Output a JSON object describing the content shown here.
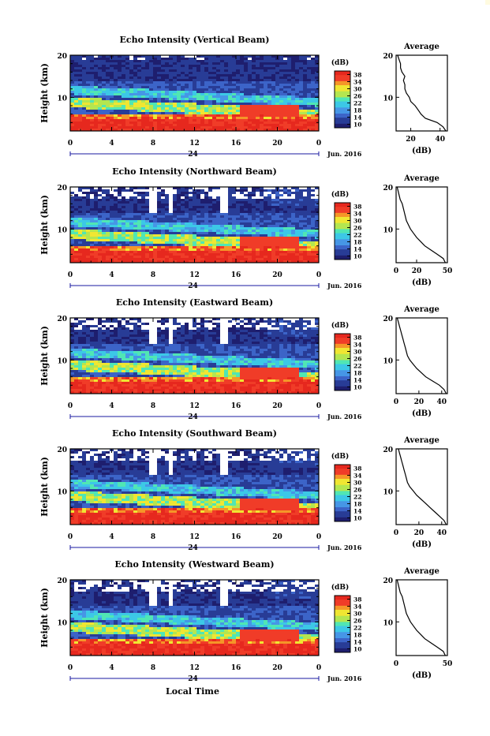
{
  "figure": {
    "x_label": "Local Time",
    "date_label": "Jun. 2016",
    "day_label": "24",
    "y_label": "Height (km)",
    "colorbar_unit": "(dB)",
    "avg_title": "Average",
    "avg_xlabel": "(dB)"
  },
  "colors": {
    "scale": [
      "#1e1e6e",
      "#283c96",
      "#3c64c8",
      "#4696e6",
      "#3cc8e6",
      "#50e6b4",
      "#b4e650",
      "#f0e632",
      "#f59628",
      "#f03c28",
      "#e6281e"
    ]
  },
  "chart_data": [
    {
      "type": "heatmap",
      "title": "Echo Intensity (Vertical Beam)",
      "xlabel": "Local Time",
      "ylabel": "Height (km)",
      "xlim": [
        0,
        24
      ],
      "ylim": [
        2,
        20
      ],
      "x_ticks": [
        "0",
        "4",
        "8",
        "12",
        "16",
        "20",
        "0"
      ],
      "y_ticks": [
        "10",
        "20"
      ],
      "colorbar": {
        "label": "(dB)",
        "min": 10,
        "max": 38,
        "ticks": [
          "38",
          "34",
          "30",
          "26",
          "22",
          "18",
          "14",
          "10"
        ]
      },
      "profile": {
        "title": "Average",
        "xlabel": "(dB)",
        "x_ticks": [
          "20",
          "40"
        ],
        "y_ticks": [
          "10",
          "20"
        ],
        "xlim": [
          10,
          45
        ],
        "heights": [
          2,
          3,
          4,
          5,
          6,
          7,
          8,
          9,
          10,
          11,
          12,
          13,
          14,
          15,
          16,
          17,
          18,
          19,
          20
        ],
        "values": [
          44,
          42,
          38,
          30,
          27,
          25,
          23,
          20,
          19,
          17,
          16,
          16,
          15,
          16,
          14,
          13,
          13,
          12,
          11
        ]
      }
    },
    {
      "type": "heatmap",
      "title": "Echo Intensity (Northward Beam)",
      "xlabel": "Local Time",
      "ylabel": "Height (km)",
      "xlim": [
        0,
        24
      ],
      "ylim": [
        2,
        20
      ],
      "x_ticks": [
        "0",
        "4",
        "8",
        "12",
        "16",
        "20",
        "0"
      ],
      "y_ticks": [
        "10",
        "20"
      ],
      "colorbar": {
        "label": "(dB)",
        "min": 10,
        "max": 38,
        "ticks": [
          "38",
          "34",
          "30",
          "26",
          "22",
          "18",
          "14",
          "10"
        ]
      },
      "profile": {
        "title": "Average",
        "xlabel": "(dB)",
        "x_ticks": [
          "0",
          "20",
          "50"
        ],
        "y_ticks": [
          "10",
          "20"
        ],
        "xlim": [
          0,
          50
        ],
        "heights": [
          2,
          3,
          4,
          5,
          6,
          7,
          8,
          9,
          10,
          11,
          12,
          13,
          14,
          15,
          16,
          17,
          18,
          19,
          20
        ],
        "values": [
          48,
          46,
          40,
          34,
          28,
          24,
          20,
          17,
          14,
          12,
          10,
          9,
          8,
          7,
          6,
          4,
          3,
          2,
          1
        ]
      }
    },
    {
      "type": "heatmap",
      "title": "Echo Intensity (Eastward Beam)",
      "xlabel": "Local Time",
      "ylabel": "Height (km)",
      "xlim": [
        0,
        24
      ],
      "ylim": [
        2,
        20
      ],
      "x_ticks": [
        "0",
        "4",
        "8",
        "12",
        "16",
        "20",
        "0"
      ],
      "y_ticks": [
        "10",
        "20"
      ],
      "colorbar": {
        "label": "(dB)",
        "min": 10,
        "max": 38,
        "ticks": [
          "38",
          "34",
          "30",
          "26",
          "22",
          "18",
          "14",
          "10"
        ]
      },
      "profile": {
        "title": "Average",
        "xlabel": "(dB)",
        "x_ticks": [
          "0",
          "20",
          "40"
        ],
        "y_ticks": [
          "10",
          "20"
        ],
        "xlim": [
          0,
          45
        ],
        "heights": [
          2,
          3,
          4,
          5,
          6,
          7,
          8,
          9,
          10,
          11,
          12,
          13,
          14,
          15,
          16,
          17,
          18,
          19,
          20
        ],
        "values": [
          44,
          42,
          38,
          32,
          26,
          22,
          18,
          15,
          12,
          10,
          9,
          8,
          7,
          6,
          5,
          4,
          3,
          2,
          1
        ]
      }
    },
    {
      "type": "heatmap",
      "title": "Echo Intensity (Southward Beam)",
      "xlabel": "Local Time",
      "ylabel": "Height (km)",
      "xlim": [
        0,
        24
      ],
      "ylim": [
        2,
        20
      ],
      "x_ticks": [
        "0",
        "4",
        "8",
        "12",
        "16",
        "20",
        "0"
      ],
      "y_ticks": [
        "10",
        "20"
      ],
      "colorbar": {
        "label": "(dB)",
        "min": 10,
        "max": 38,
        "ticks": [
          "38",
          "34",
          "30",
          "26",
          "22",
          "18",
          "14",
          "10"
        ]
      },
      "profile": {
        "title": "Average",
        "xlabel": "(dB)",
        "x_ticks": [
          "0",
          "20",
          "40"
        ],
        "y_ticks": [
          "10",
          "20"
        ],
        "xlim": [
          0,
          45
        ],
        "heights": [
          2,
          3,
          4,
          5,
          6,
          7,
          8,
          9,
          10,
          11,
          12,
          13,
          14,
          15,
          16,
          17,
          18,
          19,
          20
        ],
        "values": [
          44,
          42,
          38,
          34,
          30,
          26,
          22,
          18,
          15,
          12,
          10,
          9,
          8,
          7,
          6,
          5,
          4,
          3,
          2
        ]
      }
    },
    {
      "type": "heatmap",
      "title": "Echo Intensity (Westward Beam)",
      "xlabel": "Local Time",
      "ylabel": "Height (km)",
      "xlim": [
        0,
        24
      ],
      "ylim": [
        2,
        20
      ],
      "x_ticks": [
        "0",
        "4",
        "8",
        "12",
        "16",
        "20",
        "0"
      ],
      "y_ticks": [
        "10",
        "20"
      ],
      "colorbar": {
        "label": "(dB)",
        "min": 10,
        "max": 38,
        "ticks": [
          "38",
          "34",
          "30",
          "26",
          "22",
          "18",
          "14",
          "10"
        ]
      },
      "profile": {
        "title": "Average",
        "xlabel": "(dB)",
        "x_ticks": [
          "0",
          "50"
        ],
        "y_ticks": [
          "10",
          "20"
        ],
        "xlim": [
          0,
          50
        ],
        "heights": [
          2,
          3,
          4,
          5,
          6,
          7,
          8,
          9,
          10,
          11,
          12,
          13,
          14,
          15,
          16,
          17,
          18,
          19,
          20
        ],
        "values": [
          48,
          46,
          40,
          34,
          28,
          24,
          20,
          17,
          14,
          12,
          10,
          9,
          8,
          7,
          6,
          4,
          3,
          2,
          1
        ]
      }
    }
  ]
}
